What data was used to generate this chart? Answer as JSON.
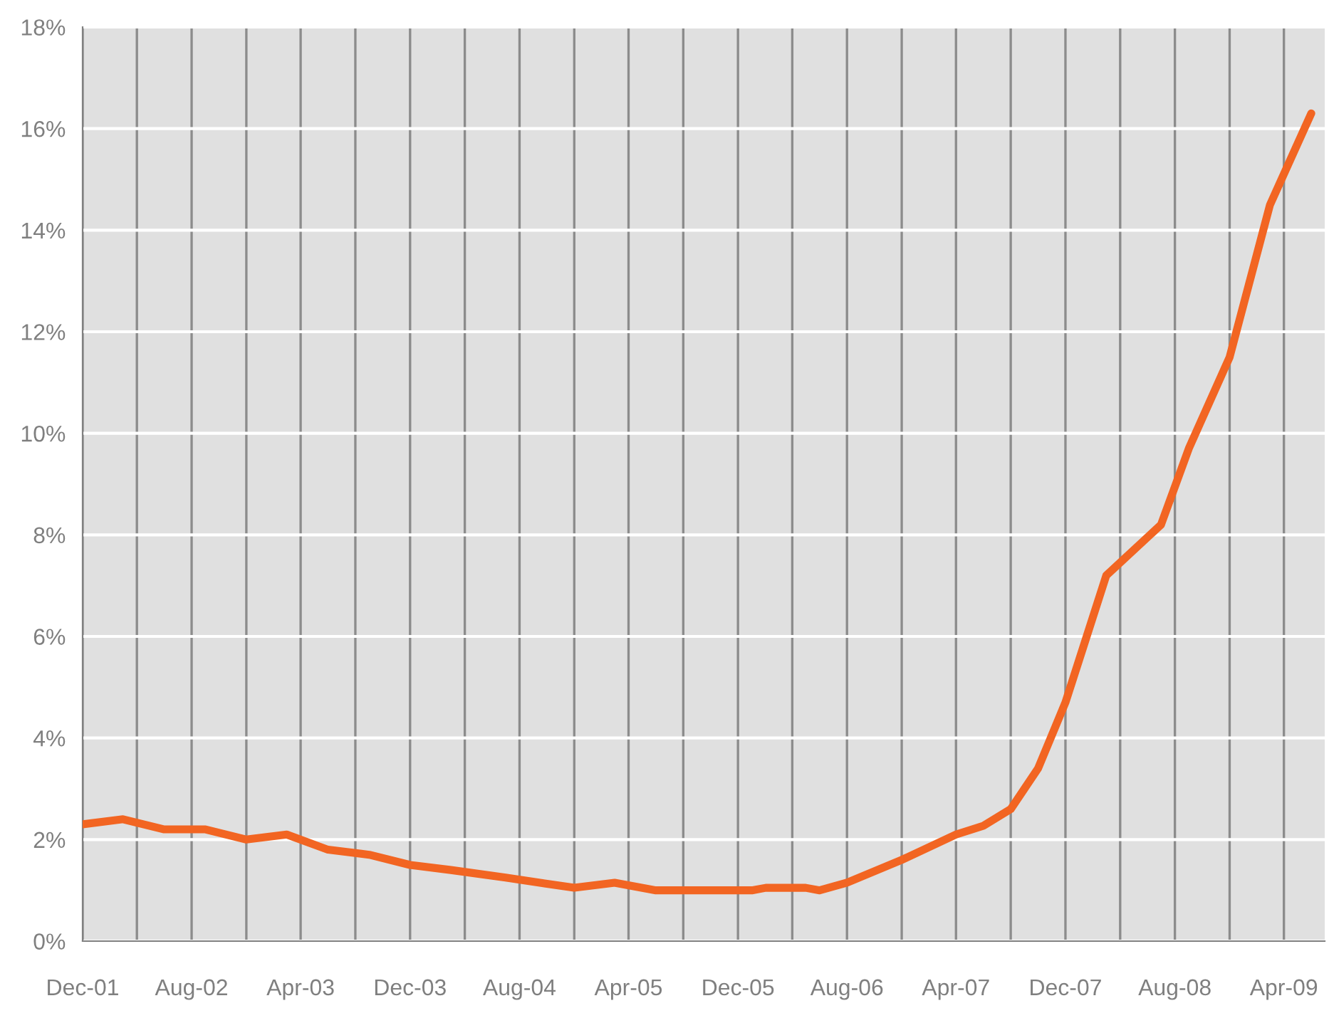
{
  "chart_data": {
    "type": "line",
    "x": [
      "2001-12",
      "2002-03",
      "2002-06",
      "2002-09",
      "2002-12",
      "2003-03",
      "2003-06",
      "2003-09",
      "2003-12",
      "2004-03",
      "2004-07",
      "2004-12",
      "2005-03",
      "2005-06",
      "2006-01",
      "2006-02",
      "2006-05",
      "2006-06",
      "2006-08",
      "2006-12",
      "2007-04",
      "2007-06",
      "2007-08",
      "2007-10",
      "2007-12",
      "2008-03",
      "2008-07",
      "2008-09",
      "2008-12",
      "2009-03",
      "2009-06"
    ],
    "series": [
      {
        "color": "#f26522",
        "values": [
          2.3,
          2.4,
          2.2,
          2.2,
          2.0,
          2.1,
          1.8,
          1.7,
          1.5,
          1.4,
          1.25,
          1.05,
          1.15,
          1.0,
          1.0,
          1.05,
          1.05,
          1.0,
          1.15,
          1.6,
          2.1,
          2.27,
          2.6,
          3.4,
          4.7,
          7.2,
          8.2,
          9.7,
          11.5,
          14.5,
          16.3
        ]
      }
    ],
    "xlim": [
      "2001-12",
      "2009-07"
    ],
    "xticks": [
      {
        "value": "2001-12",
        "label": "Dec-01"
      },
      {
        "value": "2002-04",
        "label": null
      },
      {
        "value": "2002-08",
        "label": "Aug-02"
      },
      {
        "value": "2002-12",
        "label": null
      },
      {
        "value": "2003-04",
        "label": "Apr-03"
      },
      {
        "value": "2003-08",
        "label": null
      },
      {
        "value": "2003-12",
        "label": "Dec-03"
      },
      {
        "value": "2004-04",
        "label": null
      },
      {
        "value": "2004-08",
        "label": "Aug-04"
      },
      {
        "value": "2004-12",
        "label": null
      },
      {
        "value": "2005-04",
        "label": "Apr-05"
      },
      {
        "value": "2005-08",
        "label": null
      },
      {
        "value": "2005-12",
        "label": "Dec-05"
      },
      {
        "value": "2006-04",
        "label": null
      },
      {
        "value": "2006-08",
        "label": "Aug-06"
      },
      {
        "value": "2006-12",
        "label": null
      },
      {
        "value": "2007-04",
        "label": "Apr-07"
      },
      {
        "value": "2007-08",
        "label": null
      },
      {
        "value": "2007-12",
        "label": "Dec-07"
      },
      {
        "value": "2008-04",
        "label": null
      },
      {
        "value": "2008-08",
        "label": "Aug-08"
      },
      {
        "value": "2008-12",
        "label": null
      },
      {
        "value": "2009-04",
        "label": "Apr-09"
      }
    ],
    "ylim": [
      0,
      18
    ],
    "yticks": [
      {
        "value": 0,
        "label": "0%"
      },
      {
        "value": 2,
        "label": "2%"
      },
      {
        "value": 4,
        "label": "4%"
      },
      {
        "value": 6,
        "label": "6%"
      },
      {
        "value": 8,
        "label": "8%"
      },
      {
        "value": 10,
        "label": "10%"
      },
      {
        "value": 12,
        "label": "12%"
      },
      {
        "value": 14,
        "label": "14%"
      },
      {
        "value": 16,
        "label": "16%"
      },
      {
        "value": 18,
        "label": "18%"
      }
    ],
    "grid": true,
    "legend": false,
    "marker": "none",
    "line_style": "solid"
  }
}
